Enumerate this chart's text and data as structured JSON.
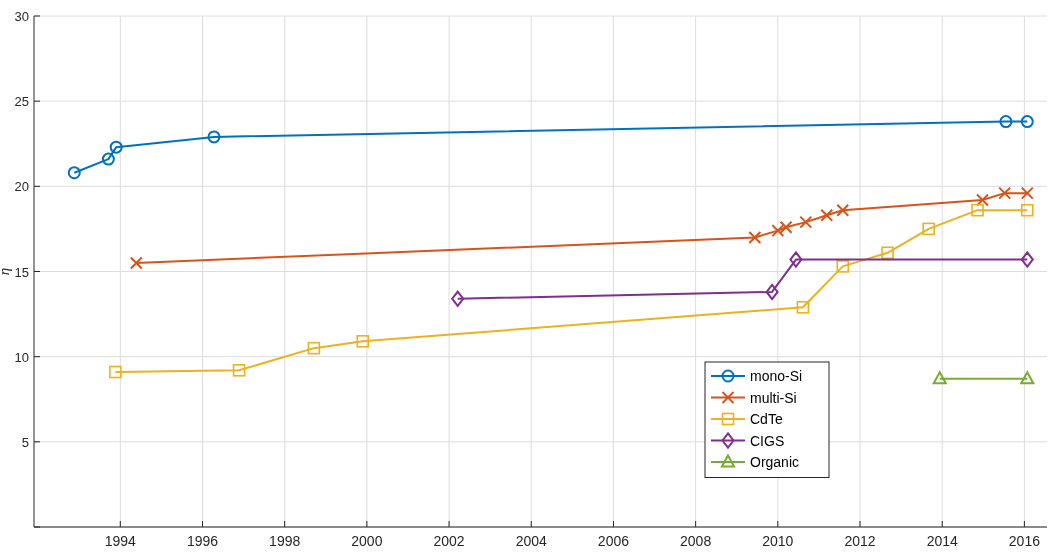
{
  "chart_data": {
    "type": "line",
    "ylabel": "η",
    "xlim": [
      1991.9,
      2016.55
    ],
    "ylim": [
      0,
      30
    ],
    "xticks": [
      1994,
      1996,
      1998,
      2000,
      2002,
      2004,
      2006,
      2008,
      2010,
      2012,
      2014,
      2016
    ],
    "yticks": [
      {
        "value": 0,
        "label": null
      },
      5,
      10,
      15,
      20,
      25,
      30
    ],
    "grid": true,
    "legend": "bottom right",
    "line_style": "solid",
    "series": [
      {
        "name": "mono-Si",
        "color": "#0072bd",
        "marker": "circle",
        "x": [
          1992.88,
          1993.71,
          1993.9,
          1996.28,
          2015.55,
          2016.07
        ],
        "values": [
          20.8,
          21.6,
          22.3,
          22.9,
          23.8,
          23.8
        ]
      },
      {
        "name": "multi-Si",
        "color": "#d95319",
        "marker": "cross",
        "x": [
          1994.39,
          2009.44,
          2010.0,
          2010.2,
          2010.68,
          2011.19,
          2011.58,
          2014.98,
          2015.52,
          2016.07
        ],
        "values": [
          15.5,
          17.0,
          17.4,
          17.6,
          17.9,
          18.3,
          18.6,
          19.2,
          19.6,
          19.6
        ]
      },
      {
        "name": "CdTe",
        "color": "#edb120",
        "marker": "square",
        "x": [
          1993.88,
          1996.89,
          1998.71,
          1999.9,
          2010.61,
          2011.58,
          2012.67,
          2013.67,
          2014.86,
          2016.07
        ],
        "values": [
          9.1,
          9.2,
          10.5,
          10.9,
          12.9,
          15.3,
          16.1,
          17.5,
          18.6,
          18.6
        ]
      },
      {
        "name": "CIGS",
        "color": "#7e2f8e",
        "marker": "diamond",
        "x": [
          2002.21,
          2009.86,
          2010.44,
          2016.07
        ],
        "values": [
          13.4,
          13.8,
          15.7,
          15.7
        ]
      },
      {
        "name": "Organic",
        "color": "#77ac30",
        "marker": "triangle",
        "x": [
          2013.94,
          2016.07
        ],
        "values": [
          8.7,
          8.7
        ]
      }
    ]
  }
}
